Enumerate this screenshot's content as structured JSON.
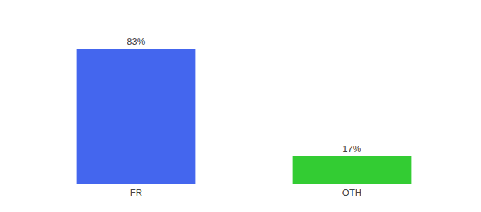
{
  "chart_data": {
    "type": "bar",
    "categories": [
      "FR",
      "OTH"
    ],
    "values": [
      83,
      17
    ],
    "value_labels": [
      "83%",
      "17%"
    ],
    "colors": [
      "#4466ee",
      "#33cc33"
    ],
    "ylim": [
      0,
      100
    ],
    "data_labels": true,
    "tick_labels": "x",
    "grid": false
  }
}
